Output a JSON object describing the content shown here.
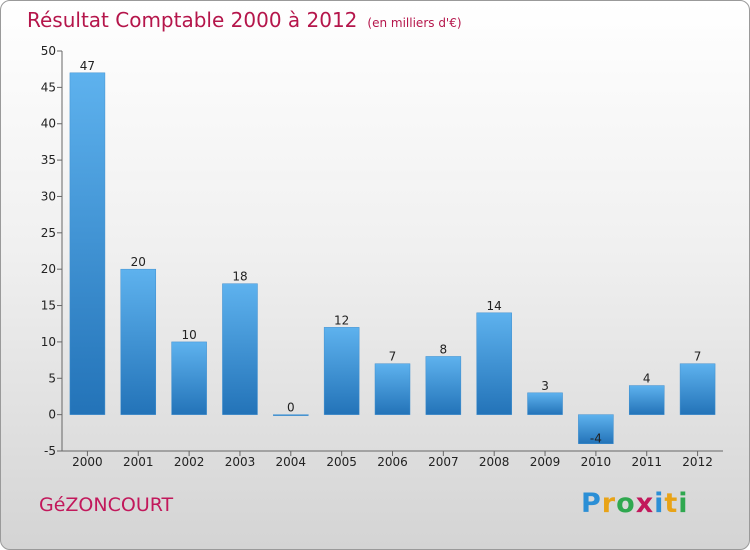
{
  "header": {
    "title": "Résultat Comptable 2000 à 2012",
    "unit": "(en milliers d'€)"
  },
  "footer": {
    "commune": "GéZONCOURT",
    "logo_letters": [
      "P",
      "r",
      "o",
      "x",
      "i",
      "t",
      "i"
    ],
    "logo_colors": [
      "#2b8fd6",
      "#e8a317",
      "#2fa84f",
      "#c2185b",
      "#2b8fd6",
      "#e8a317",
      "#2fa84f"
    ]
  },
  "chart_data": {
    "type": "bar",
    "title": "Résultat Comptable 2000 à 2012",
    "ylabel": "",
    "xlabel": "",
    "categories": [
      "2000",
      "2001",
      "2002",
      "2003",
      "2004",
      "2005",
      "2006",
      "2007",
      "2008",
      "2009",
      "2010",
      "2011",
      "2012"
    ],
    "values": [
      47,
      20,
      10,
      18,
      0,
      12,
      7,
      8,
      14,
      3,
      -4,
      4,
      7
    ],
    "labels": [
      "47",
      "20",
      "10",
      "18",
      "0",
      "12",
      "7",
      "8",
      "14",
      "3",
      "-4",
      "4",
      "7"
    ],
    "ylim": [
      -5,
      50
    ],
    "yticks": [
      -5,
      0,
      5,
      10,
      15,
      20,
      25,
      30,
      35,
      40,
      45,
      50
    ],
    "ytick_labels": [
      "-5",
      "0",
      "5",
      "10",
      "15",
      "20",
      "25",
      "30",
      "35",
      "40",
      "45",
      "50"
    ],
    "grid": false,
    "colors": {
      "bar_top": "#5eb2ee",
      "bar_bottom": "#2373b8",
      "axis": "#666666"
    }
  }
}
